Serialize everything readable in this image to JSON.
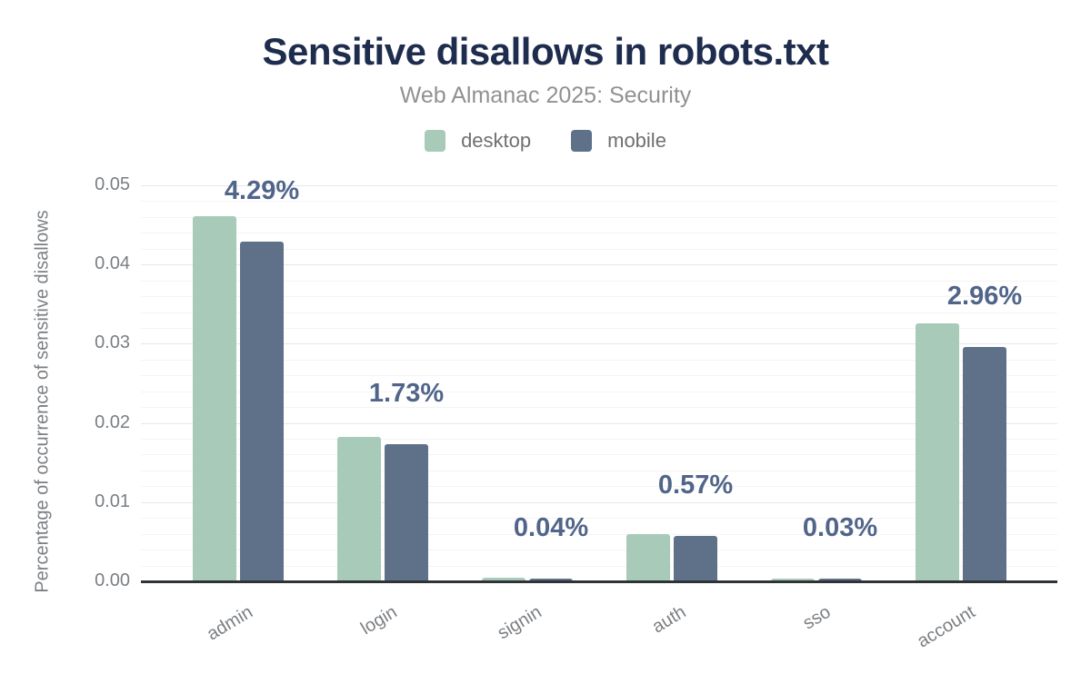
{
  "chart": {
    "title": "Sensitive disallows in robots.txt",
    "subtitle": "Web Almanac 2025: Security"
  },
  "legend": [
    {
      "label": "desktop",
      "color": "#a8cab8"
    },
    {
      "label": "mobile",
      "color": "#5f7189"
    }
  ],
  "chart_data": {
    "type": "bar",
    "title": "Sensitive disallows in robots.txt",
    "subtitle": "Web Almanac 2025: Security",
    "categories": [
      "admin",
      "login",
      "signin",
      "auth",
      "sso",
      "account"
    ],
    "series": [
      {
        "name": "desktop",
        "color": "#a8cab8",
        "values": [
          0.0461,
          0.0182,
          0.0005,
          0.006,
          0.0003,
          0.0326
        ]
      },
      {
        "name": "mobile",
        "color": "#5f7189",
        "values": [
          0.0429,
          0.0173,
          0.0004,
          0.0057,
          0.0003,
          0.0296
        ]
      }
    ],
    "bar_labels": [
      "4.29%",
      "1.73%",
      "0.04%",
      "0.57%",
      "0.03%",
      "2.96%"
    ],
    "bar_label_series": "mobile",
    "xlabel": "",
    "ylabel": "Percentage of occurrence of sensitive disallows",
    "ylim": [
      0,
      0.05
    ],
    "yticks": [
      0,
      0.01,
      0.02,
      0.03,
      0.04,
      0.05
    ],
    "ytick_format": "2dp",
    "minor_grid_step": 0.002,
    "grid": true,
    "legend_position": "top"
  },
  "colors": {
    "title": "#1e2c4e",
    "subtitle": "#8f9193",
    "bar_label": "#51658a",
    "tick_text": "#7b7f83",
    "axis_line": "#2f3337",
    "grid_major": "#e7e7e7",
    "grid_minor": "#f4f4f4",
    "background": "#ffffff"
  }
}
